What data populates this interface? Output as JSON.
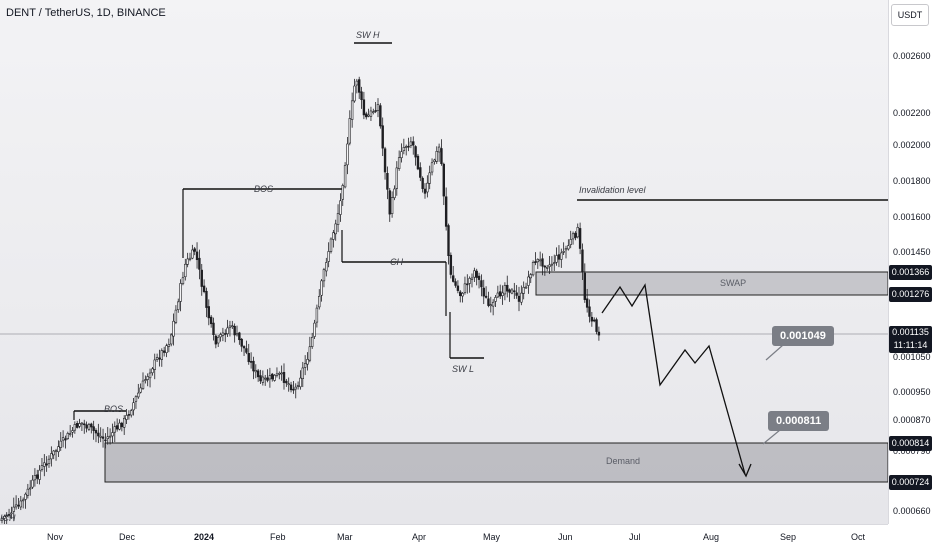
{
  "symbol_title": "DENT / TetherUS, 1D, BINANCE",
  "currency": "USDT",
  "price_axis": [
    {
      "price": 0.0026,
      "label": "0.002600"
    },
    {
      "price": 0.0022,
      "label": "0.002200"
    },
    {
      "price": 0.002,
      "label": "0.002000"
    },
    {
      "price": 0.0018,
      "label": "0.001800"
    },
    {
      "price": 0.0016,
      "label": "0.001600"
    },
    {
      "price": 0.00145,
      "label": "0.001450"
    },
    {
      "price": 0.00105,
      "label": "0.001050"
    },
    {
      "price": 0.00095,
      "label": "0.000950"
    },
    {
      "price": 0.00087,
      "label": "0.000870"
    },
    {
      "price": 0.00079,
      "label": "0.000790"
    },
    {
      "price": 0.00066,
      "label": "0.000660"
    }
  ],
  "time_axis": [
    "Nov",
    "Dec",
    "2024",
    "Feb",
    "Mar",
    "Apr",
    "May",
    "Jun",
    "Jul",
    "Aug",
    "Sep",
    "Oct"
  ],
  "price_tags": {
    "swap_top": "0.001366",
    "swap_bottom": "0.001276",
    "last_price": "0.001135",
    "countdown": "11:11:14",
    "demand_top": "0.000814",
    "demand_bottom": "0.000724"
  },
  "callouts": {
    "first_target": "0.001049",
    "second_target": "0.000811"
  },
  "annotations": {
    "sw_high": "SW H",
    "sw_low": "SW L",
    "bos_major": "BOS",
    "bos_minor": "BOS",
    "choch_short": "CH",
    "choch_edge": "ICH",
    "invalidation": "Invalidation level",
    "swap_zone": "SWAP",
    "demand_zone": "Demand"
  },
  "levels": {
    "invalidation": 0.0017,
    "swap_top": 0.001366,
    "swap_bottom": 0.001276,
    "demand_top": 0.000814,
    "demand_bottom": 0.000724,
    "last_price": 0.001135
  },
  "colors": {
    "bull": "#222222",
    "bear": "#222222",
    "zone_fill": "#9a9aa0",
    "tag_bg": "#131722",
    "callout_bg": "#7b7e86"
  },
  "chart_data": {
    "type": "candlestick",
    "ohlc_note": "DENT/USDT daily, approximate closes",
    "key_points": [
      {
        "date": "Nov",
        "close": 0.00068
      },
      {
        "date": "Dec",
        "close": 0.00087
      },
      {
        "date": "2024",
        "close": 0.00125
      },
      {
        "date": "Feb",
        "close": 0.00099
      },
      {
        "date": "Mar",
        "close": 0.00245
      },
      {
        "date": "Apr",
        "close": 0.002
      },
      {
        "date": "May",
        "close": 0.00128
      },
      {
        "date": "Jun",
        "close": 0.00113
      }
    ]
  }
}
